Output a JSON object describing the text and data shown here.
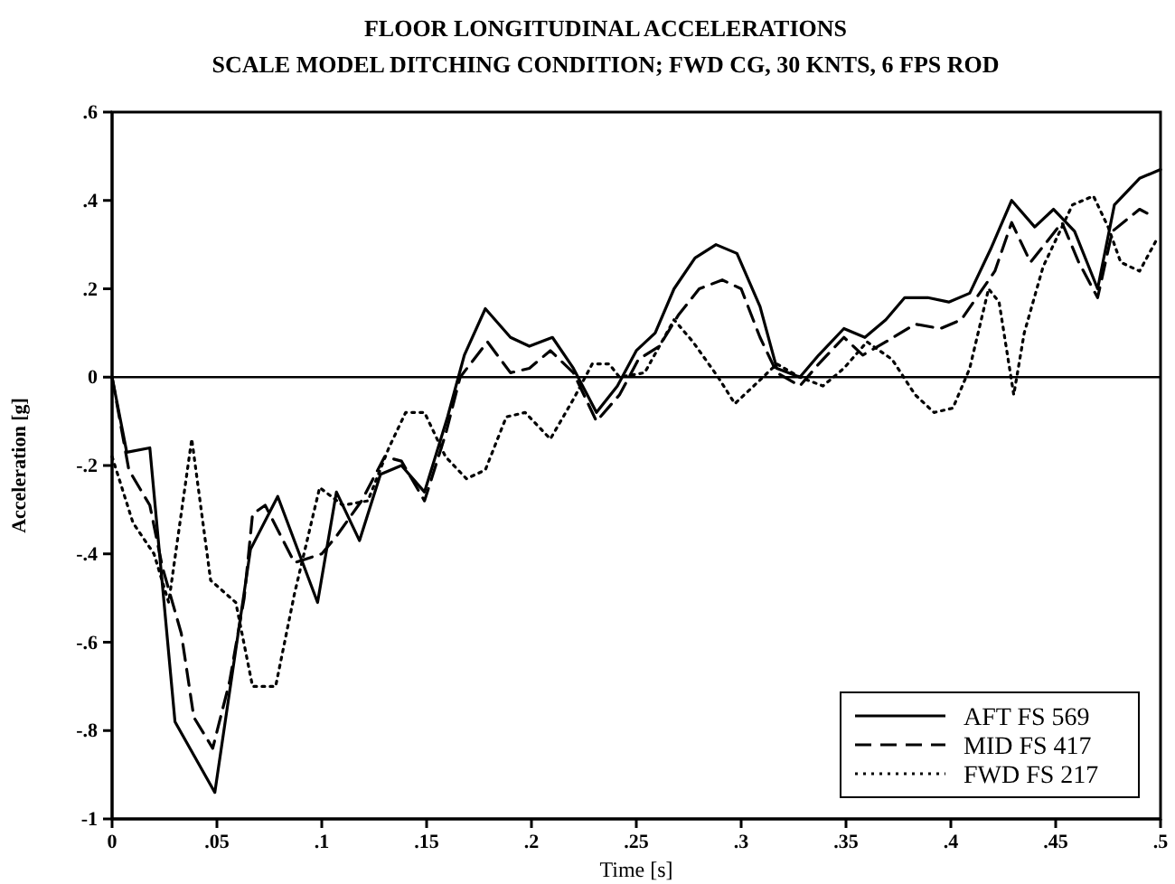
{
  "chart_data": {
    "type": "line",
    "title": "FLOOR LONGITUDINAL ACCELERATIONS",
    "subtitle": "SCALE MODEL DITCHING CONDITION; FWD CG, 30 KNTS, 6 FPS ROD",
    "xlabel": "Time [s]",
    "ylabel": "Acceleration [g]",
    "xlim": [
      0,
      0.5
    ],
    "ylim": [
      -1,
      0.6
    ],
    "xticks": [
      0,
      {
        "value": 0.05,
        "label": ".05"
      },
      {
        "value": 0.1,
        "label": ".1"
      },
      {
        "value": 0.15,
        "label": ".15"
      },
      {
        "value": 0.2,
        "label": ".2"
      },
      {
        "value": 0.25,
        "label": ".25"
      },
      {
        "value": 0.3,
        "label": ".3"
      },
      {
        "value": 0.35,
        "label": ".35"
      },
      {
        "value": 0.4,
        "label": ".4"
      },
      {
        "value": 0.45,
        "label": ".45"
      },
      {
        "value": 0.5,
        "label": ".5"
      }
    ],
    "yticks": [
      {
        "value": 0.6,
        "label": ".6"
      },
      {
        "value": 0.4,
        "label": ".4"
      },
      {
        "value": 0.2,
        "label": ".2"
      },
      0,
      {
        "value": -0.2,
        "label": "-.2"
      },
      {
        "value": -0.4,
        "label": "-.4"
      },
      {
        "value": -0.6,
        "label": "-.6"
      },
      {
        "value": -0.8,
        "label": "-.8"
      },
      -1
    ],
    "ref_lines": [
      {
        "axis": "y",
        "value": 0,
        "color": "#000000"
      }
    ],
    "grid": false,
    "legend": "bottom right",
    "marker": "none",
    "series": [
      {
        "name": "AFT FS 569",
        "color": "#000000",
        "line_style": "solid",
        "x": [
          0,
          0.007,
          0.018,
          0.03,
          0.049,
          0.066,
          0.079,
          0.098,
          0.107,
          0.118,
          0.128,
          0.138,
          0.149,
          0.16,
          0.168,
          0.178,
          0.19,
          0.199,
          0.21,
          0.22,
          0.231,
          0.241,
          0.25,
          0.259,
          0.268,
          0.278,
          0.288,
          0.298,
          0.309,
          0.317,
          0.328,
          0.337,
          0.349,
          0.359,
          0.369,
          0.378,
          0.389,
          0.399,
          0.409,
          0.419,
          0.429,
          0.44,
          0.449,
          0.459,
          0.47,
          0.478,
          0.49,
          0.5
        ],
        "values": [
          0,
          -0.17,
          -0.16,
          -0.78,
          -0.94,
          -0.39,
          -0.27,
          -0.51,
          -0.26,
          -0.37,
          -0.22,
          -0.2,
          -0.26,
          -0.09,
          0.05,
          0.155,
          0.09,
          0.07,
          0.09,
          0.02,
          -0.08,
          -0.02,
          0.06,
          0.1,
          0.2,
          0.27,
          0.3,
          0.28,
          0.16,
          0.02,
          0,
          0.05,
          0.11,
          0.09,
          0.13,
          0.18,
          0.18,
          0.17,
          0.19,
          0.29,
          0.4,
          0.34,
          0.38,
          0.33,
          0.2,
          0.39,
          0.45,
          0.47
        ]
      },
      {
        "name": "MID FS 417",
        "color": "#000000",
        "line_style": "dashed",
        "x": [
          0,
          0.008,
          0.018,
          0.024,
          0.033,
          0.039,
          0.048,
          0.056,
          0.063,
          0.067,
          0.073,
          0.087,
          0.1,
          0.107,
          0.119,
          0.13,
          0.138,
          0.149,
          0.159,
          0.166,
          0.179,
          0.19,
          0.199,
          0.209,
          0.22,
          0.231,
          0.242,
          0.251,
          0.261,
          0.27,
          0.28,
          0.291,
          0.3,
          0.309,
          0.317,
          0.328,
          0.337,
          0.349,
          0.358,
          0.369,
          0.383,
          0.395,
          0.405,
          0.421,
          0.429,
          0.438,
          0.453,
          0.461,
          0.47,
          0.477,
          0.49,
          0.494
        ],
        "values": [
          0,
          -0.21,
          -0.29,
          -0.43,
          -0.58,
          -0.77,
          -0.84,
          -0.69,
          -0.5,
          -0.31,
          -0.29,
          -0.42,
          -0.4,
          -0.36,
          -0.28,
          -0.18,
          -0.19,
          -0.28,
          -0.13,
          0,
          0.08,
          0.01,
          0.02,
          0.06,
          0.01,
          -0.1,
          -0.04,
          0.04,
          0.07,
          0.14,
          0.2,
          0.22,
          0.2,
          0.09,
          0.01,
          -0.02,
          0.03,
          0.09,
          0.05,
          0.08,
          0.12,
          0.11,
          0.13,
          0.24,
          0.35,
          0.26,
          0.35,
          0.26,
          0.18,
          0.33,
          0.38,
          0.37
        ]
      },
      {
        "name": "FWD FS 217",
        "color": "#000000",
        "line_style": "dotted",
        "x": [
          0,
          0.01,
          0.02,
          0.027,
          0.038,
          0.047,
          0.059,
          0.067,
          0.078,
          0.087,
          0.099,
          0.11,
          0.122,
          0.132,
          0.14,
          0.149,
          0.159,
          0.169,
          0.178,
          0.188,
          0.197,
          0.209,
          0.22,
          0.229,
          0.237,
          0.242,
          0.254,
          0.268,
          0.277,
          0.289,
          0.297,
          0.306,
          0.317,
          0.328,
          0.339,
          0.349,
          0.36,
          0.372,
          0.383,
          0.392,
          0.401,
          0.409,
          0.418,
          0.423,
          0.43,
          0.435,
          0.444,
          0.458,
          0.468,
          0.475,
          0.481,
          0.49,
          0.498
        ],
        "values": [
          -0.18,
          -0.33,
          -0.4,
          -0.51,
          -0.14,
          -0.46,
          -0.51,
          -0.7,
          -0.7,
          -0.49,
          -0.25,
          -0.29,
          -0.28,
          -0.16,
          -0.08,
          -0.08,
          -0.18,
          -0.23,
          -0.21,
          -0.09,
          -0.08,
          -0.14,
          -0.05,
          0.03,
          0.03,
          0,
          0.01,
          0.13,
          0.08,
          0,
          -0.06,
          -0.02,
          0.03,
          0,
          -0.02,
          0.02,
          0.08,
          0.04,
          -0.04,
          -0.08,
          -0.07,
          0.02,
          0.2,
          0.17,
          -0.04,
          0.1,
          0.25,
          0.39,
          0.41,
          0.34,
          0.26,
          0.24,
          0.31
        ]
      }
    ]
  }
}
